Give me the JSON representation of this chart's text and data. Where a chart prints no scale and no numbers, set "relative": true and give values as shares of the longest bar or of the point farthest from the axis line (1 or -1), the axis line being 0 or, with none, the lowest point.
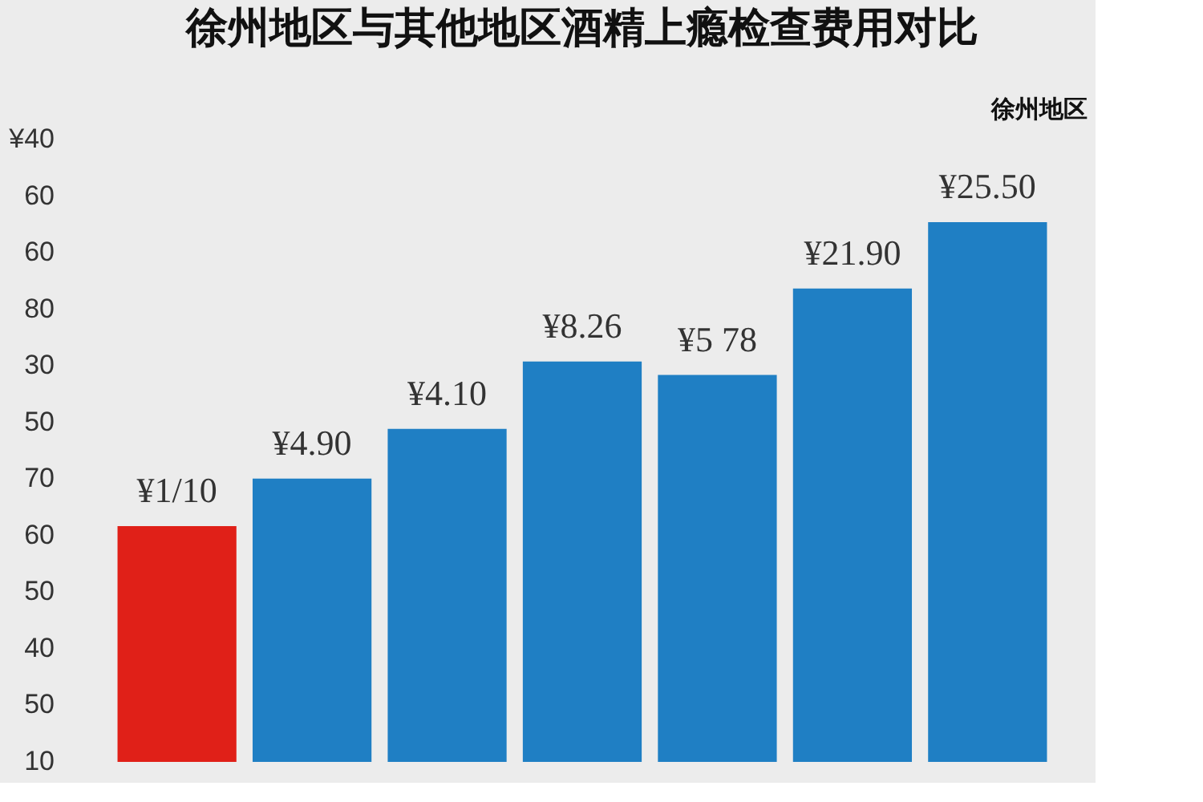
{
  "chart_data": {
    "type": "bar",
    "title": "徐州地区与其他地区酒精上瘾检查费用对比",
    "categories": [
      null,
      null,
      null,
      null,
      null,
      null,
      null
    ],
    "values": [
      0.437,
      0.525,
      0.617,
      0.742,
      0.717,
      0.877,
      1
    ],
    "colors": [
      "#e02018",
      "#1f7fc4",
      "#1f7fc4",
      "#1f7fc4",
      "#1f7fc4",
      "#1f7fc4",
      "#1f7fc4"
    ],
    "relative": true,
    "annotations": [
      "¥1/10",
      "¥4.90",
      "¥4.10",
      "¥8.26",
      "¥5 78",
      "¥21.90",
      "¥25.50",
      "10",
      "50",
      "40",
      "50",
      "60",
      "70",
      "50",
      "30",
      "80",
      "60",
      "60",
      "¥40",
      "徐州地区"
    ],
    "grid": false
  }
}
